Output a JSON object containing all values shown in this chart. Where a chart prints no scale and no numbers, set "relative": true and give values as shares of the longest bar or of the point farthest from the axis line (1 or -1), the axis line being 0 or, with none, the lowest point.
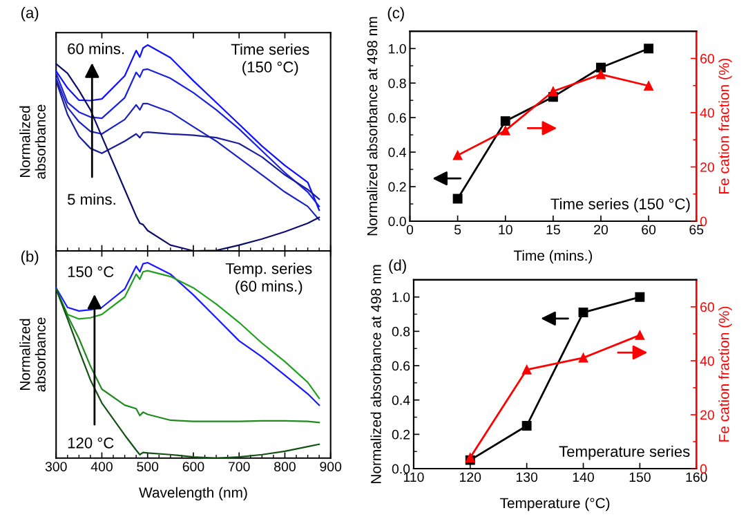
{
  "chart_data": [
    {
      "type": "line",
      "relative": true,
      "marker": "none",
      "tick_labels": false,
      "ylabel": "Normalized\nabsorbance",
      "xlim": [
        300,
        900
      ],
      "xticks": [
        300,
        400,
        500,
        600,
        700,
        800,
        900
      ],
      "x": [
        300,
        325,
        350,
        375,
        400,
        450,
        475,
        483,
        490,
        500,
        550,
        600,
        650,
        700,
        750,
        800,
        850,
        875
      ],
      "series": [
        {
          "color": "#1010ff",
          "values": [
            0.873,
            0.791,
            0.732,
            0.73,
            0.738,
            0.85,
            0.973,
            0.941,
            0.985,
            1.0,
            0.938,
            0.826,
            0.721,
            0.615,
            0.509,
            0.415,
            0.333,
            0.198
          ]
        },
        {
          "color": "#1a22e0",
          "values": [
            0.862,
            0.721,
            0.674,
            0.65,
            0.644,
            0.744,
            0.867,
            0.844,
            0.879,
            0.883,
            0.838,
            0.768,
            0.685,
            0.592,
            0.486,
            0.38,
            0.286,
            0.216
          ]
        },
        {
          "color": "#1c22c0",
          "values": [
            0.838,
            0.697,
            0.627,
            0.58,
            0.568,
            0.638,
            0.709,
            0.685,
            0.715,
            0.715,
            0.674,
            0.603,
            0.533,
            0.451,
            0.369,
            0.286,
            0.216,
            0.151
          ]
        },
        {
          "color": "#1a1f99",
          "values": [
            0.826,
            0.662,
            0.556,
            0.498,
            0.474,
            0.533,
            0.568,
            0.55,
            0.574,
            0.577,
            0.568,
            0.562,
            0.55,
            0.521,
            0.456,
            0.369,
            0.298,
            0.251
          ]
        },
        {
          "color": "#0d0d6b",
          "values": [
            0.908,
            0.862,
            0.779,
            0.685,
            0.556,
            0.298,
            0.169,
            0.134,
            0.128,
            0.099,
            0.028,
            0.0,
            0.002,
            0.028,
            0.058,
            0.093,
            0.134,
            0.163
          ]
        }
      ],
      "annotations": [
        "(a)",
        "60 mins.",
        "5 mins.",
        "Time series\n(150 °C)"
      ]
    },
    {
      "type": "line",
      "relative": true,
      "marker": "none",
      "tick_labels": "x",
      "xlabel": "Wavelength (nm)",
      "ylabel": "Normalized\nabsorbance",
      "xlim": [
        300,
        900
      ],
      "xticks": [
        300,
        400,
        500,
        600,
        700,
        800,
        900
      ],
      "x": [
        300,
        325,
        350,
        375,
        400,
        450,
        475,
        483,
        490,
        500,
        550,
        600,
        650,
        700,
        750,
        800,
        850,
        875
      ],
      "series": [
        {
          "color": "#1a1aff",
          "values": [
            0.871,
            0.771,
            0.753,
            0.759,
            0.771,
            0.865,
            0.982,
            0.953,
            0.994,
            1.0,
            0.941,
            0.835,
            0.718,
            0.6,
            0.518,
            0.424,
            0.329,
            0.271
          ]
        },
        {
          "color": "#22a022",
          "values": [
            0.865,
            0.735,
            0.712,
            0.718,
            0.735,
            0.824,
            0.941,
            0.915,
            0.953,
            0.959,
            0.929,
            0.871,
            0.788,
            0.694,
            0.588,
            0.494,
            0.388,
            0.306
          ]
        },
        {
          "color": "#1e8a1e",
          "values": [
            0.865,
            0.729,
            0.612,
            0.471,
            0.353,
            0.271,
            0.253,
            0.218,
            0.235,
            0.224,
            0.194,
            0.188,
            0.188,
            0.188,
            0.191,
            0.191,
            0.188,
            0.182
          ]
        },
        {
          "color": "#145214",
          "values": [
            0.865,
            0.712,
            0.553,
            0.4,
            0.282,
            0.118,
            0.041,
            0.018,
            0.029,
            0.026,
            0.018,
            0.006,
            0.0,
            0.006,
            0.018,
            0.035,
            0.059,
            0.071
          ]
        }
      ],
      "annotations": [
        "(b)",
        "150 °C",
        "120 °C",
        "Temp. series\n(60 mins.)"
      ]
    },
    {
      "type": "line",
      "xlabel": "Time (mins.)",
      "ylabel": "Normalized absorbance at 498 nm",
      "y2label": "Fe cation fraction (%)",
      "categories": [
        "0",
        "5",
        "10",
        "15",
        "20",
        "60",
        "65"
      ],
      "ylim": [
        0,
        1.1
      ],
      "yticks": [
        {
          "value": 0,
          "label": "0.0"
        },
        {
          "value": 0.2,
          "label": "0.2"
        },
        {
          "value": 0.4,
          "label": "0.4"
        },
        {
          "value": 0.6,
          "label": "0.6"
        },
        {
          "value": 0.8,
          "label": "0.8"
        },
        {
          "value": 1.0,
          "label": "1.0"
        }
      ],
      "y2lim": [
        0,
        70
      ],
      "y2ticks": [
        0,
        20,
        40,
        60
      ],
      "series": [
        {
          "color": "#000000",
          "marker": "square",
          "values": [
            null,
            0.13,
            0.58,
            0.72,
            0.89,
            1.0,
            null
          ]
        },
        {
          "color": "#ff0000",
          "marker": "triangle",
          "axis": "y2",
          "values": [
            null,
            24.3,
            33.4,
            47.9,
            54.1,
            49.9,
            null
          ]
        }
      ],
      "annotations": [
        "(c)",
        "Time series (150 °C)"
      ]
    },
    {
      "type": "line",
      "xlabel": "Temperature (°C)",
      "ylabel": "Normalized absorbance at 498 nm",
      "y2label": "Fe cation fraction (%)",
      "x": [
        120,
        130,
        140,
        150
      ],
      "xlim": [
        110,
        160
      ],
      "xticks": [
        110,
        120,
        130,
        140,
        150,
        160
      ],
      "ylim": [
        0,
        1.1
      ],
      "yticks": [
        {
          "value": 0,
          "label": "0.0"
        },
        {
          "value": 0.2,
          "label": "0.2"
        },
        {
          "value": 0.4,
          "label": "0.4"
        },
        {
          "value": 0.6,
          "label": "0.6"
        },
        {
          "value": 0.8,
          "label": "0.8"
        },
        {
          "value": 1.0,
          "label": "1.0"
        }
      ],
      "y2lim": [
        0,
        70
      ],
      "y2ticks": [
        0,
        20,
        40,
        60
      ],
      "series": [
        {
          "color": "#000000",
          "marker": "square",
          "values": [
            0.05,
            0.25,
            0.91,
            1.0
          ]
        },
        {
          "color": "#ff0000",
          "marker": "triangle",
          "axis": "y2",
          "values": [
            4.1,
            36.7,
            41.1,
            49.5
          ]
        }
      ],
      "annotations": [
        "(d)",
        "Temperature series"
      ]
    }
  ]
}
